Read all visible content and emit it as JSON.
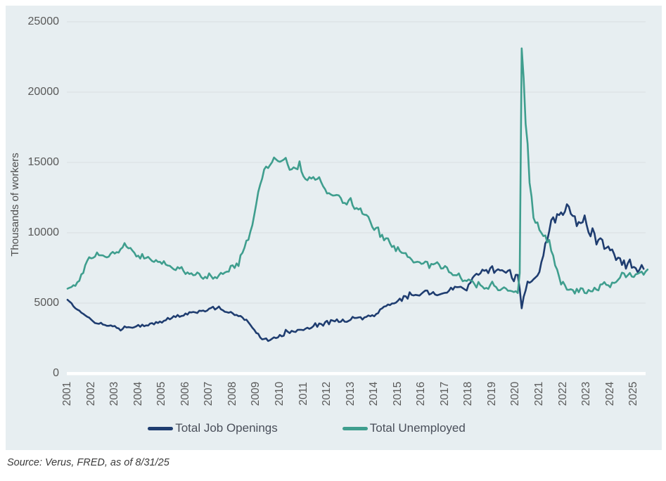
{
  "footer": {
    "source": "Source: Verus, FRED, as of 8/31/25"
  },
  "colors": {
    "panel_bg": "#e7eef1",
    "gridline": "#d8dee1",
    "zero_line": "#ffffff",
    "tick_text": "#595959",
    "legend_text": "#4a4f5a",
    "navy": "#1f3d70",
    "teal": "#3f9e8e"
  },
  "chart_data": {
    "type": "line",
    "title": "",
    "xlabel": "",
    "ylabel": "Thousands of workers",
    "ylim": [
      0,
      25000
    ],
    "y_ticks": [
      0,
      5000,
      10000,
      15000,
      20000,
      25000
    ],
    "x_tick_labels": [
      "2001",
      "2002",
      "2003",
      "2004",
      "2005",
      "2006",
      "2007",
      "2008",
      "2009",
      "2010",
      "2011",
      "2012",
      "2013",
      "2014",
      "2015",
      "2016",
      "2017",
      "2018",
      "2019",
      "2020",
      "2021",
      "2022",
      "2023",
      "2024",
      "2025"
    ],
    "x_start_year": 2001,
    "frequency": "monthly",
    "grid": "horizontal",
    "legend_position": "bottom",
    "series": [
      {
        "name": "Total Job Openings",
        "color": "#1f3d70",
        "start": "2001-01",
        "values": [
          5234,
          5112,
          4997,
          4771,
          4632,
          4537,
          4463,
          4322,
          4234,
          4128,
          4032,
          3963,
          3832,
          3706,
          3580,
          3552,
          3525,
          3602,
          3476,
          3447,
          3383,
          3386,
          3413,
          3343,
          3374,
          3242,
          3201,
          3049,
          3161,
          3347,
          3268,
          3288,
          3270,
          3247,
          3288,
          3350,
          3443,
          3313,
          3464,
          3353,
          3414,
          3399,
          3543,
          3575,
          3487,
          3655,
          3584,
          3689,
          3610,
          3742,
          3782,
          3948,
          3843,
          3933,
          4074,
          4003,
          4156,
          4023,
          4087,
          4106,
          4262,
          4179,
          4354,
          4335,
          4370,
          4337,
          4294,
          4459,
          4439,
          4472,
          4405,
          4463,
          4599,
          4653,
          4742,
          4544,
          4634,
          4754,
          4561,
          4491,
          4378,
          4357,
          4316,
          4368,
          4276,
          4147,
          4161,
          4069,
          4087,
          3976,
          3802,
          3821,
          3634,
          3452,
          3248,
          3095,
          2876,
          2818,
          2553,
          2422,
          2450,
          2489,
          2306,
          2363,
          2467,
          2563,
          2510,
          2556,
          2737,
          2636,
          2681,
          3099,
          2966,
          2867,
          3023,
          2968,
          2943,
          3097,
          3107,
          3100,
          3076,
          3174,
          3249,
          3172,
          3240,
          3355,
          3570,
          3312,
          3548,
          3513,
          3388,
          3638,
          3739,
          3492,
          3793,
          3751,
          3701,
          3845,
          3648,
          3676,
          3834,
          3674,
          3665,
          3737,
          3816,
          4022,
          3938,
          3947,
          3978,
          3998,
          3830,
          3980,
          4018,
          4118,
          4067,
          4142,
          4061,
          4219,
          4286,
          4549,
          4626,
          4750,
          4780,
          4901,
          4853,
          4971,
          4975,
          5028,
          5158,
          5318,
          5147,
          5507,
          5487,
          5312,
          5770,
          5581,
          5543,
          5585,
          5560,
          5535,
          5665,
          5786,
          5891,
          5892,
          5608,
          5676,
          5786,
          5607,
          5557,
          5599,
          5651,
          5697,
          5730,
          5741,
          5882,
          6096,
          5956,
          6163,
          6130,
          6140,
          6161,
          6063,
          5968,
          5894,
          6320,
          6455,
          6788,
          6958,
          7085,
          7006,
          7122,
          7374,
          7293,
          7362,
          7131,
          7479,
          7625,
          7143,
          7315,
          7405,
          7326,
          7339,
          7243,
          7154,
          7301,
          7361,
          6787,
          6552,
          7012,
          7004,
          6011,
          4630,
          5447,
          5899,
          6528,
          6447,
          6542,
          6695,
          6818,
          6956,
          7215,
          7913,
          8376,
          9245,
          9483,
          10122,
          10893,
          11098,
          10717,
          11324,
          11258,
          11448,
          11263,
          11510,
          12027,
          11858,
          11345,
          11196,
          11175,
          10472,
          10763,
          10687,
          10746,
          11234,
          10563,
          10023,
          9745,
          10320,
          9948,
          9165,
          9497,
          9610,
          9497,
          8852,
          8925,
          9026,
          8748,
          8813,
          8488,
          8059,
          8230,
          8184,
          7711,
          8040,
          7443,
          7839,
          8098,
          7508,
          7568,
          7480,
          7192,
          7395,
          7712,
          7437
        ]
      },
      {
        "name": "Total Unemployed",
        "color": "#3f9e8e",
        "start": "2001-01",
        "values": [
          6023,
          6089,
          6141,
          6271,
          6226,
          6484,
          6583,
          7042,
          7142,
          7694,
          8003,
          8258,
          8182,
          8215,
          8304,
          8599,
          8399,
          8393,
          8390,
          8304,
          8251,
          8307,
          8520,
          8640,
          8520,
          8618,
          8588,
          8842,
          8957,
          9266,
          9011,
          8896,
          8921,
          8732,
          8576,
          8317,
          8370,
          8167,
          8491,
          8170,
          8212,
          8286,
          8136,
          7990,
          7927,
          8061,
          7932,
          7934,
          7784,
          7980,
          7737,
          7672,
          7651,
          7524,
          7406,
          7345,
          7553,
          7453,
          7566,
          7279,
          7064,
          7184,
          7072,
          7120,
          6980,
          7001,
          7175,
          7091,
          6847,
          6727,
          6872,
          6762,
          7116,
          6927,
          6731,
          6850,
          6766,
          6979,
          7149,
          7067,
          7170,
          7237,
          7240,
          7645,
          7685,
          7497,
          7822,
          7637,
          8395,
          8575,
          8937,
          9438,
          9494,
          10074,
          10538,
          11286,
          12058,
          12898,
          13426,
          13853,
          14499,
          14707,
          14601,
          14814,
          15009,
          15352,
          15219,
          15098,
          15046,
          15113,
          15202,
          15325,
          14849,
          14474,
          14512,
          14648,
          14579,
          14516,
          15081,
          14348,
          14013,
          13820,
          13737,
          13957,
          13855,
          13962,
          13763,
          13818,
          13948,
          13594,
          13302,
          13093,
          12797,
          12813,
          12713,
          12646,
          12660,
          12692,
          12656,
          12471,
          12115,
          12124,
          12005,
          12298,
          12471,
          11950,
          11689,
          11760,
          11654,
          11735,
          11350,
          11284,
          11264,
          11133,
          10787,
          10404,
          10202,
          10349,
          10380,
          9702,
          9859,
          9460,
          9608,
          9599,
          9262,
          8990,
          9071,
          8688,
          8979,
          8705,
          8575,
          8549,
          8555,
          8280,
          8245,
          8092,
          7885,
          7908,
          7939,
          7907,
          7784,
          7820,
          7956,
          7927,
          7490,
          7783,
          7751,
          7812,
          7904,
          7740,
          7455,
          7470,
          7635,
          7528,
          7202,
          7145,
          6983,
          6987,
          6981,
          7111,
          6791,
          6557,
          6611,
          6570,
          6682,
          6610,
          6560,
          6343,
          6103,
          6499,
          6282,
          6177,
          6022,
          6082,
          6006,
          6283,
          6525,
          6236,
          6134,
          5915,
          5915,
          6018,
          6118,
          6034,
          5874,
          5882,
          5847,
          5787,
          5844,
          5717,
          7140,
          23109,
          20985,
          17750,
          16338,
          13550,
          12580,
          11061,
          10710,
          10736,
          10202,
          9988,
          9767,
          9812,
          9316,
          9486,
          8712,
          8378,
          7672,
          7384,
          6877,
          6319,
          6513,
          6270,
          5954,
          5944,
          5983,
          5928,
          5674,
          6014,
          5769,
          6062,
          6030,
          5722,
          5694,
          5936,
          5839,
          5837,
          6097,
          5957,
          5905,
          6320,
          6338,
          6495,
          6296,
          6268,
          6124,
          6458,
          6429,
          6492,
          6649,
          6811,
          7163,
          7115,
          6834,
          6984,
          7145,
          6886,
          6849,
          7052,
          7083,
          7165,
          7237,
          7015,
          7240,
          7384
        ]
      }
    ]
  }
}
